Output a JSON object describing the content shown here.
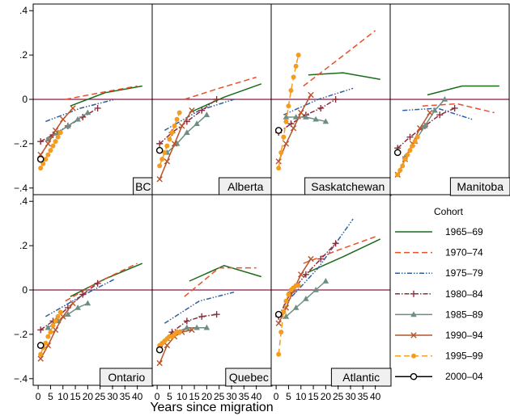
{
  "chart_data": {
    "type": "line",
    "xlabel": "Years since migration",
    "xlim": [
      -2,
      46
    ],
    "ylim": [
      -0.43,
      0.43
    ],
    "x_ticks": [
      0,
      5,
      10,
      15,
      20,
      25,
      30,
      35,
      40
    ],
    "x_tick_labels": [
      "0",
      "5",
      "10",
      "15",
      "20",
      "25",
      "30",
      "35",
      "40"
    ],
    "y_ticks": [
      -0.4,
      -0.2,
      0,
      0.2,
      0.4
    ],
    "y_tick_labels": [
      "−.4",
      "−.2",
      "0",
      ".2",
      ".4"
    ],
    "reference_line": {
      "y": 0,
      "color": "#8b1a4a"
    },
    "legend": {
      "title": "Cohort",
      "placement": "right, bottom-right cell"
    },
    "series_styles": [
      {
        "name": "1965–69",
        "color": "#1a6b1a",
        "dash": "",
        "marker": "none"
      },
      {
        "name": "1970–74",
        "color": "#e8502a",
        "dash": "7,4",
        "marker": "none"
      },
      {
        "name": "1975–79",
        "color": "#2e5fa3",
        "dash": "6,2,1.5,2,1.5,2",
        "marker": "none"
      },
      {
        "name": "1980–84",
        "color": "#8b2c3a",
        "dash": "6,2,1.5,2",
        "marker": "plus"
      },
      {
        "name": "1985–89",
        "color": "#6e8e84",
        "dash": "",
        "marker": "triangle"
      },
      {
        "name": "1990–94",
        "color": "#b5542d",
        "dash": "",
        "marker": "x"
      },
      {
        "name": "1995–99",
        "color": "#f39c1f",
        "dash": "7,4",
        "marker": "dot"
      },
      {
        "name": "2000–04",
        "color": "#000000",
        "dash": "",
        "marker": "hollow-circle"
      }
    ],
    "panels": [
      {
        "name": "BC",
        "series": [
          {
            "cohort": 0,
            "x": [
              13,
              27,
              42
            ],
            "y": [
              -0.03,
              0.03,
              0.06
            ]
          },
          {
            "cohort": 1,
            "x": [
              11,
              25,
              40
            ],
            "y": [
              0.0,
              0.03,
              0.06
            ]
          },
          {
            "cohort": 2,
            "x": [
              3,
              17,
              31
            ],
            "y": [
              -0.1,
              -0.04,
              0.0
            ]
          },
          {
            "cohort": 3,
            "x": [
              1,
              6,
              12,
              18,
              24
            ],
            "y": [
              -0.19,
              -0.16,
              -0.12,
              -0.08,
              -0.04
            ]
          },
          {
            "cohort": 4,
            "x": [
              4,
              8,
              12,
              16,
              20
            ],
            "y": [
              -0.18,
              -0.15,
              -0.12,
              -0.09,
              -0.06
            ]
          },
          {
            "cohort": 5,
            "x": [
              1,
              4,
              7,
              10,
              14
            ],
            "y": [
              -0.25,
              -0.2,
              -0.14,
              -0.09,
              -0.04
            ]
          },
          {
            "cohort": 6,
            "x": [
              1,
              2,
              3,
              4,
              5,
              6,
              7,
              8,
              9
            ],
            "y": [
              -0.31,
              -0.29,
              -0.27,
              -0.25,
              -0.23,
              -0.21,
              -0.19,
              -0.17,
              -0.15
            ]
          },
          {
            "cohort": 7,
            "x": [
              1
            ],
            "y": [
              -0.27
            ]
          }
        ]
      },
      {
        "name": "Alberta",
        "series": [
          {
            "cohort": 0,
            "x": [
              13,
              27,
              42
            ],
            "y": [
              -0.06,
              0.01,
              0.07
            ]
          },
          {
            "cohort": 1,
            "x": [
              11,
              25,
              40
            ],
            "y": [
              0.0,
              0.05,
              0.1
            ]
          },
          {
            "cohort": 2,
            "x": [
              3,
              17,
              31
            ],
            "y": [
              -0.14,
              -0.05,
              0.0
            ]
          },
          {
            "cohort": 3,
            "x": [
              1,
              6,
              12,
              18,
              24
            ],
            "y": [
              -0.2,
              -0.15,
              -0.1,
              -0.05,
              0.0
            ]
          },
          {
            "cohort": 4,
            "x": [
              4,
              8,
              12,
              16,
              20
            ],
            "y": [
              -0.24,
              -0.2,
              -0.15,
              -0.11,
              -0.07
            ]
          },
          {
            "cohort": 5,
            "x": [
              1,
              4,
              7,
              10,
              14
            ],
            "y": [
              -0.36,
              -0.28,
              -0.2,
              -0.12,
              -0.05
            ]
          },
          {
            "cohort": 6,
            "x": [
              1,
              2,
              3,
              4,
              5,
              6,
              7,
              8,
              9
            ],
            "y": [
              -0.3,
              -0.27,
              -0.24,
              -0.21,
              -0.18,
              -0.15,
              -0.12,
              -0.09,
              -0.06
            ]
          },
          {
            "cohort": 7,
            "x": [
              1
            ],
            "y": [
              -0.23
            ]
          }
        ]
      },
      {
        "name": "Saskatchewan",
        "series": [
          {
            "cohort": 0,
            "x": [
              13,
              27,
              42
            ],
            "y": [
              0.11,
              0.12,
              0.09
            ]
          },
          {
            "cohort": 1,
            "x": [
              11,
              25,
              40
            ],
            "y": [
              0.06,
              0.18,
              0.31
            ]
          },
          {
            "cohort": 2,
            "x": [
              3,
              17,
              31
            ],
            "y": [
              -0.07,
              0.0,
              0.05
            ]
          },
          {
            "cohort": 3,
            "x": [
              1,
              6,
              12,
              18,
              24
            ],
            "y": [
              -0.15,
              -0.11,
              -0.07,
              -0.04,
              0.0
            ]
          },
          {
            "cohort": 4,
            "x": [
              4,
              8,
              12,
              16,
              20
            ],
            "y": [
              -0.08,
              -0.08,
              -0.08,
              -0.09,
              -0.1
            ]
          },
          {
            "cohort": 5,
            "x": [
              1,
              4,
              7,
              10,
              14
            ],
            "y": [
              -0.28,
              -0.2,
              -0.13,
              -0.06,
              0.02
            ]
          },
          {
            "cohort": 6,
            "x": [
              1,
              2,
              3,
              4,
              5,
              6,
              7,
              8,
              9
            ],
            "y": [
              -0.31,
              -0.24,
              -0.17,
              -0.1,
              -0.03,
              0.04,
              0.1,
              0.15,
              0.2
            ]
          },
          {
            "cohort": 7,
            "x": [
              1
            ],
            "y": [
              -0.14
            ]
          }
        ]
      },
      {
        "name": "Manitoba",
        "series": [
          {
            "cohort": 0,
            "x": [
              13,
              27,
              42
            ],
            "y": [
              0.02,
              0.06,
              0.06
            ]
          },
          {
            "cohort": 1,
            "x": [
              11,
              25,
              40
            ],
            "y": [
              -0.03,
              -0.02,
              -0.06
            ]
          },
          {
            "cohort": 2,
            "x": [
              3,
              17,
              31
            ],
            "y": [
              -0.05,
              -0.04,
              -0.09
            ]
          },
          {
            "cohort": 3,
            "x": [
              1,
              6,
              12,
              18,
              24
            ],
            "y": [
              -0.22,
              -0.17,
              -0.12,
              -0.07,
              -0.04
            ]
          },
          {
            "cohort": 4,
            "x": [
              4,
              8,
              12,
              16,
              20
            ],
            "y": [
              -0.26,
              -0.19,
              -0.12,
              -0.05,
              0.0
            ]
          },
          {
            "cohort": 5,
            "x": [
              1,
              4,
              7,
              10,
              14
            ],
            "y": [
              -0.34,
              -0.27,
              -0.2,
              -0.13,
              -0.06
            ]
          },
          {
            "cohort": 6,
            "x": [
              1,
              2,
              3,
              4,
              5,
              6,
              7,
              8,
              9
            ],
            "y": [
              -0.34,
              -0.32,
              -0.3,
              -0.27,
              -0.25,
              -0.23,
              -0.21,
              -0.19,
              -0.17
            ]
          },
          {
            "cohort": 7,
            "x": [
              1
            ],
            "y": [
              -0.24
            ]
          }
        ]
      },
      {
        "name": "Ontario",
        "series": [
          {
            "cohort": 0,
            "x": [
              13,
              27,
              42
            ],
            "y": [
              -0.03,
              0.05,
              0.12
            ]
          },
          {
            "cohort": 1,
            "x": [
              11,
              25,
              40
            ],
            "y": [
              -0.05,
              0.04,
              0.12
            ]
          },
          {
            "cohort": 2,
            "x": [
              3,
              17,
              31
            ],
            "y": [
              -0.12,
              -0.03,
              0.05
            ]
          },
          {
            "cohort": 3,
            "x": [
              1,
              6,
              12,
              18,
              24
            ],
            "y": [
              -0.18,
              -0.14,
              -0.08,
              -0.02,
              0.03
            ]
          },
          {
            "cohort": 4,
            "x": [
              4,
              8,
              12,
              16,
              20
            ],
            "y": [
              -0.17,
              -0.14,
              -0.11,
              -0.08,
              -0.06
            ]
          },
          {
            "cohort": 5,
            "x": [
              1,
              4,
              7,
              10,
              14
            ],
            "y": [
              -0.31,
              -0.25,
              -0.18,
              -0.12,
              -0.06
            ]
          },
          {
            "cohort": 6,
            "x": [
              1,
              2,
              3,
              4,
              5,
              6,
              7,
              8,
              9
            ],
            "y": [
              -0.29,
              -0.26,
              -0.24,
              -0.21,
              -0.19,
              -0.16,
              -0.14,
              -0.12,
              -0.1
            ]
          },
          {
            "cohort": 7,
            "x": [
              1
            ],
            "y": [
              -0.25
            ]
          }
        ]
      },
      {
        "name": "Quebec",
        "series": [
          {
            "cohort": 0,
            "x": [
              13,
              27,
              42
            ],
            "y": [
              0.04,
              0.11,
              0.06
            ]
          },
          {
            "cohort": 1,
            "x": [
              11,
              25,
              40
            ],
            "y": [
              -0.03,
              0.1,
              0.1
            ]
          },
          {
            "cohort": 2,
            "x": [
              3,
              17,
              31
            ],
            "y": [
              -0.15,
              -0.05,
              -0.01
            ]
          },
          {
            "cohort": 3,
            "x": [
              1,
              6,
              12,
              18,
              24
            ],
            "y": [
              -0.27,
              -0.19,
              -0.14,
              -0.12,
              -0.11
            ]
          },
          {
            "cohort": 4,
            "x": [
              4,
              8,
              12,
              16,
              20
            ],
            "y": [
              -0.22,
              -0.19,
              -0.17,
              -0.17,
              -0.17
            ]
          },
          {
            "cohort": 5,
            "x": [
              1,
              4,
              7,
              10,
              14
            ],
            "y": [
              -0.33,
              -0.25,
              -0.21,
              -0.19,
              -0.18
            ]
          },
          {
            "cohort": 6,
            "x": [
              1,
              2,
              3,
              4,
              5,
              6,
              7,
              8,
              9
            ],
            "y": [
              -0.25,
              -0.24,
              -0.23,
              -0.22,
              -0.21,
              -0.21,
              -0.2,
              -0.19,
              -0.19
            ]
          },
          {
            "cohort": 7,
            "x": [
              1
            ],
            "y": [
              -0.27
            ]
          }
        ]
      },
      {
        "name": "Atlantic",
        "series": [
          {
            "cohort": 0,
            "x": [
              13,
              27,
              42
            ],
            "y": [
              0.08,
              0.15,
              0.23
            ]
          },
          {
            "cohort": 1,
            "x": [
              11,
              25,
              40
            ],
            "y": [
              0.12,
              0.18,
              0.24
            ]
          },
          {
            "cohort": 2,
            "x": [
              3,
              17,
              31
            ],
            "y": [
              -0.07,
              0.1,
              0.32
            ]
          },
          {
            "cohort": 3,
            "x": [
              1,
              6,
              12,
              18,
              24
            ],
            "y": [
              -0.12,
              -0.01,
              0.07,
              0.14,
              0.21
            ]
          },
          {
            "cohort": 4,
            "x": [
              4,
              8,
              12,
              16,
              20
            ],
            "y": [
              -0.12,
              -0.08,
              -0.04,
              0.0,
              0.04
            ]
          },
          {
            "cohort": 5,
            "x": [
              1,
              4,
              7,
              10,
              14
            ],
            "y": [
              -0.15,
              -0.08,
              0.0,
              0.07,
              0.14
            ]
          },
          {
            "cohort": 6,
            "x": [
              1,
              2,
              3,
              4,
              5,
              6,
              7,
              8,
              9
            ],
            "y": [
              -0.29,
              -0.19,
              -0.1,
              -0.05,
              -0.02,
              0.0,
              0.01,
              0.02,
              0.02
            ]
          },
          {
            "cohort": 7,
            "x": [
              1
            ],
            "y": [
              -0.11
            ]
          }
        ]
      }
    ]
  }
}
